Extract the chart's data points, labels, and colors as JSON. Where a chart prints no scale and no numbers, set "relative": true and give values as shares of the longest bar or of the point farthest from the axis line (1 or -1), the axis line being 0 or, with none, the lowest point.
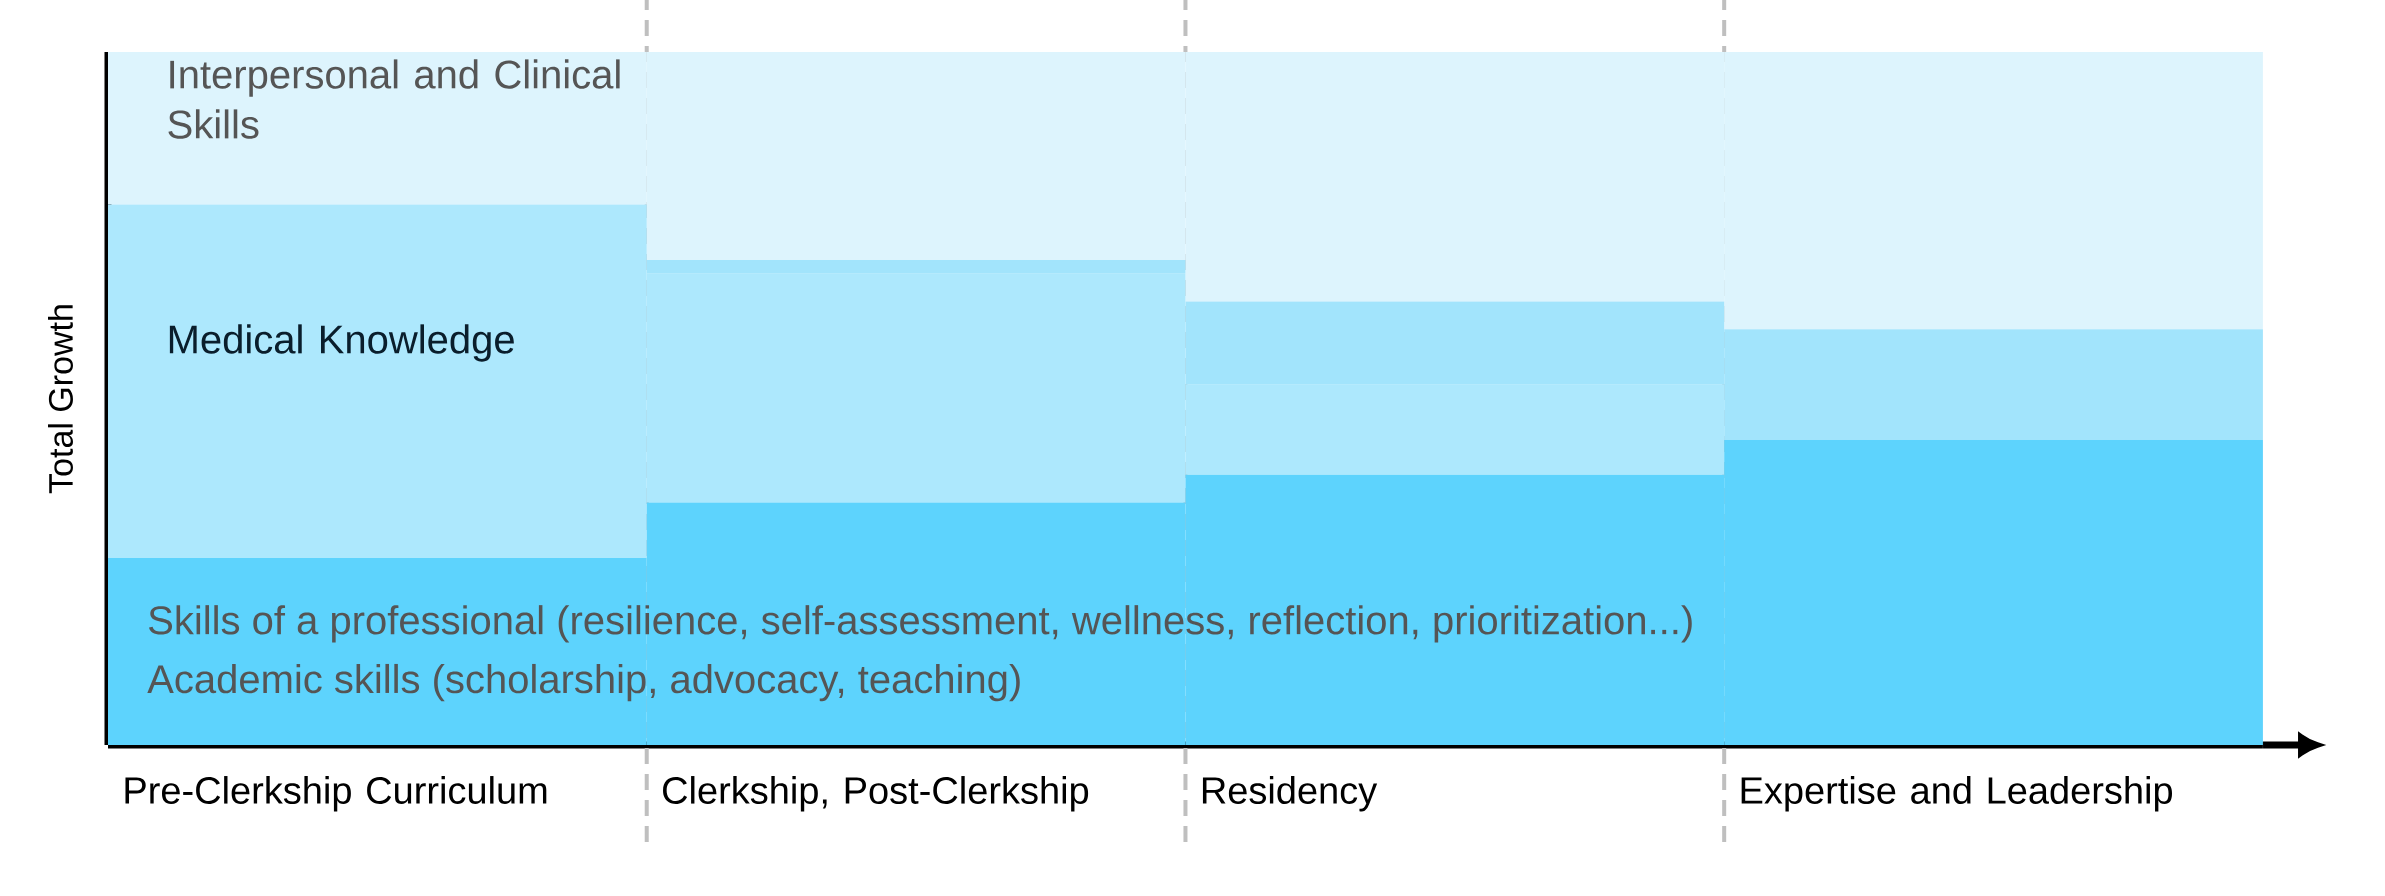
{
  "chart_data": {
    "type": "bar",
    "stacked": true,
    "relative": true,
    "ylabel": "Total Growth",
    "categories": [
      "Pre-Clerkship Curriculum",
      "Clerkship, Post-Clerkship",
      "Residency",
      "Expertise and Leadership"
    ],
    "series": [
      {
        "color": "#5dd3fd",
        "values": [
          0.27,
          0.35,
          0.39,
          0.44
        ]
      },
      {
        "color": "#ade8fd",
        "values": [
          0.51,
          0.33,
          0.13,
          0
        ]
      },
      {
        "color": "#a2e4fc",
        "values": [
          0,
          0.02,
          0.12,
          0.16
        ]
      },
      {
        "color": "#ddf4fd",
        "values": [
          0.22,
          0.3,
          0.36,
          0.4
        ]
      }
    ],
    "annotations": [
      "Interpersonal and Clinical Skills",
      "Medical Knowledge",
      "Skills of a professional (resilience, self-assessment, wellness, reflection, prioritization...)",
      "Academic skills (scholarship, advocacy, teaching)"
    ]
  }
}
